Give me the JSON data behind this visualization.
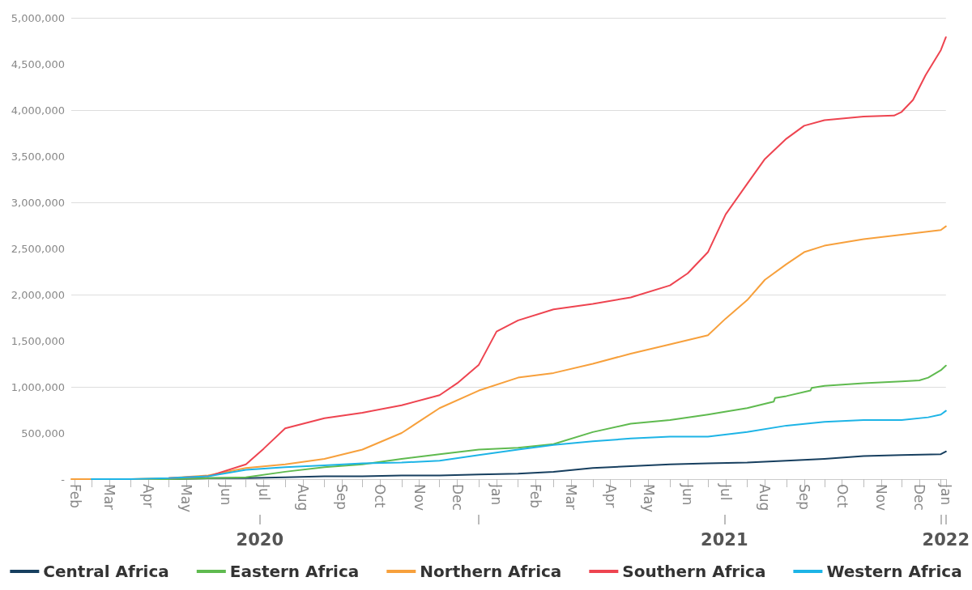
{
  "chart_data": {
    "type": "line",
    "grid": "y",
    "legend": "bottom",
    "marker": "none",
    "line_style": "solid",
    "xlim": [
      "2020-02-14",
      "2022-01-05"
    ],
    "ylim": [
      0,
      5000000
    ],
    "yticks": [
      {
        "value": 0,
        "label": "-"
      },
      {
        "value": 500000,
        "label": "500,000"
      },
      {
        "value": 1000000,
        "label": "1,000,000"
      },
      {
        "value": 1500000,
        "label": "1,500,000"
      },
      {
        "value": 2000000,
        "label": "2,000,000"
      },
      {
        "value": 2500000,
        "label": "2,500,000"
      },
      {
        "value": 3000000,
        "label": "3,000,000"
      },
      {
        "value": 3500000,
        "label": "3,500,000"
      },
      {
        "value": 4000000,
        "label": "4,000,000"
      },
      {
        "value": 4500000,
        "label": "4,500,000"
      },
      {
        "value": 5000000,
        "label": "5,000,000"
      }
    ],
    "xticks": [
      {
        "value": "2020-02-17",
        "label": "Feb"
      },
      {
        "value": "2020-03-01",
        "label": null
      },
      {
        "value": "2020-03-15",
        "label": "Mar"
      },
      {
        "value": "2020-04-01",
        "label": null
      },
      {
        "value": "2020-04-15",
        "label": "Apr"
      },
      {
        "value": "2020-05-01",
        "label": null
      },
      {
        "value": "2020-05-15",
        "label": "May"
      },
      {
        "value": "2020-06-01",
        "label": null
      },
      {
        "value": "2020-06-15",
        "label": "Jun"
      },
      {
        "value": "2020-07-01",
        "label": null
      },
      {
        "value": "2020-07-15",
        "label": "Jul"
      },
      {
        "value": "2020-08-01",
        "label": null
      },
      {
        "value": "2020-08-15",
        "label": "Aug"
      },
      {
        "value": "2020-09-01",
        "label": null
      },
      {
        "value": "2020-09-15",
        "label": "Sep"
      },
      {
        "value": "2020-10-01",
        "label": null
      },
      {
        "value": "2020-10-15",
        "label": "Oct"
      },
      {
        "value": "2020-11-01",
        "label": null
      },
      {
        "value": "2020-11-15",
        "label": "Nov"
      },
      {
        "value": "2020-12-01",
        "label": null
      },
      {
        "value": "2020-12-15",
        "label": "Dec"
      },
      {
        "value": "2021-01-01",
        "label": null
      },
      {
        "value": "2021-01-15",
        "label": "Jan"
      },
      {
        "value": "2021-02-01",
        "label": null
      },
      {
        "value": "2021-02-15",
        "label": "Feb"
      },
      {
        "value": "2021-03-01",
        "label": null
      },
      {
        "value": "2021-03-15",
        "label": "Mar"
      },
      {
        "value": "2021-04-01",
        "label": null
      },
      {
        "value": "2021-04-15",
        "label": "Apr"
      },
      {
        "value": "2021-05-01",
        "label": null
      },
      {
        "value": "2021-05-15",
        "label": "May"
      },
      {
        "value": "2021-06-01",
        "label": null
      },
      {
        "value": "2021-06-15",
        "label": "Jun"
      },
      {
        "value": "2021-07-01",
        "label": null
      },
      {
        "value": "2021-07-15",
        "label": "Jul"
      },
      {
        "value": "2021-08-01",
        "label": null
      },
      {
        "value": "2021-08-15",
        "label": "Aug"
      },
      {
        "value": "2021-09-01",
        "label": null
      },
      {
        "value": "2021-09-15",
        "label": "Sep"
      },
      {
        "value": "2021-10-01",
        "label": null
      },
      {
        "value": "2021-10-15",
        "label": "Oct"
      },
      {
        "value": "2021-11-01",
        "label": null
      },
      {
        "value": "2021-11-15",
        "label": "Nov"
      },
      {
        "value": "2021-12-01",
        "label": null
      },
      {
        "value": "2021-12-15",
        "label": "Dec"
      },
      {
        "value": "2022-01-01",
        "label": null
      },
      {
        "value": "2022-01-05",
        "label": "Jan"
      }
    ],
    "x2lim": [
      "2020-02-14",
      "2022-01-05"
    ],
    "x2ticks": [
      {
        "value": "2020-07-12",
        "label": "2020"
      },
      {
        "value": "2021-01-01",
        "label": null
      },
      {
        "value": "2021-07-14",
        "label": "2021"
      },
      {
        "value": "2022-01-01",
        "label": null
      },
      {
        "value": "2022-01-05",
        "label": "2022"
      }
    ],
    "series": [
      {
        "name": "Central Africa",
        "color": "#173f5f",
        "x": [
          "2020-03-01",
          "2020-04-01",
          "2020-05-01",
          "2020-06-01",
          "2020-07-01",
          "2020-08-01",
          "2020-09-01",
          "2020-10-01",
          "2020-11-01",
          "2020-12-01",
          "2021-01-01",
          "2021-02-01",
          "2021-03-01",
          "2021-04-01",
          "2021-05-01",
          "2021-06-01",
          "2021-07-01",
          "2021-08-01",
          "2021-09-01",
          "2021-10-01",
          "2021-11-01",
          "2021-12-01",
          "2022-01-01",
          "2022-01-05"
        ],
        "values": [
          0,
          0,
          0,
          10000,
          10000,
          20000,
          30000,
          30000,
          40000,
          40000,
          50000,
          60000,
          80000,
          120000,
          140000,
          160000,
          170000,
          180000,
          200000,
          220000,
          250000,
          260000,
          270000,
          300000
        ]
      },
      {
        "name": "Eastern Africa",
        "color": "#5fba4f",
        "x": [
          "2020-03-13",
          "2020-04-01",
          "2020-05-01",
          "2020-06-01",
          "2020-07-01",
          "2020-08-01",
          "2020-09-01",
          "2020-10-01",
          "2020-11-01",
          "2020-12-01",
          "2021-01-01",
          "2021-02-01",
          "2021-03-01",
          "2021-04-01",
          "2021-05-01",
          "2021-06-01",
          "2021-07-01",
          "2021-08-01",
          "2021-08-22",
          "2021-08-23",
          "2021-09-01",
          "2021-09-20",
          "2021-09-21",
          "2021-10-01",
          "2021-11-01",
          "2021-12-01",
          "2021-12-15",
          "2021-12-22",
          "2022-01-01",
          "2022-01-05"
        ],
        "values": [
          0,
          0,
          0,
          10000,
          20000,
          80000,
          130000,
          160000,
          220000,
          270000,
          320000,
          340000,
          380000,
          510000,
          600000,
          640000,
          700000,
          770000,
          840000,
          880000,
          900000,
          960000,
          990000,
          1010000,
          1040000,
          1060000,
          1070000,
          1100000,
          1180000,
          1230000
        ]
      },
      {
        "name": "Northern Africa",
        "color": "#f7a03c",
        "x": [
          "2020-02-14",
          "2020-03-01",
          "2020-04-01",
          "2020-05-01",
          "2020-06-01",
          "2020-07-01",
          "2020-08-01",
          "2020-09-01",
          "2020-10-01",
          "2020-11-01",
          "2020-12-01",
          "2021-01-01",
          "2021-02-01",
          "2021-03-01",
          "2021-04-01",
          "2021-05-01",
          "2021-06-01",
          "2021-07-01",
          "2021-07-15",
          "2021-08-01",
          "2021-08-15",
          "2021-09-01",
          "2021-09-15",
          "2021-10-01",
          "2021-11-01",
          "2021-12-01",
          "2022-01-01",
          "2022-01-05"
        ],
        "values": [
          0,
          0,
          0,
          10000,
          40000,
          120000,
          160000,
          220000,
          320000,
          500000,
          770000,
          960000,
          1100000,
          1150000,
          1250000,
          1360000,
          1460000,
          1560000,
          1740000,
          1940000,
          2160000,
          2330000,
          2460000,
          2530000,
          2600000,
          2650000,
          2700000,
          2740000
        ]
      },
      {
        "name": "Southern Africa",
        "color": "#ee4450",
        "x": [
          "2020-05-01",
          "2020-06-01",
          "2020-07-01",
          "2020-07-15",
          "2020-08-01",
          "2020-09-01",
          "2020-10-01",
          "2020-11-01",
          "2020-12-01",
          "2020-12-15",
          "2021-01-01",
          "2021-01-15",
          "2021-02-01",
          "2021-03-01",
          "2021-04-01",
          "2021-05-01",
          "2021-06-01",
          "2021-06-15",
          "2021-07-01",
          "2021-07-15",
          "2021-08-01",
          "2021-08-15",
          "2021-09-01",
          "2021-09-15",
          "2021-10-01",
          "2021-11-01",
          "2021-11-25",
          "2021-12-01",
          "2021-12-10",
          "2021-12-20",
          "2022-01-01",
          "2022-01-05"
        ],
        "values": [
          10000,
          30000,
          160000,
          330000,
          550000,
          660000,
          720000,
          800000,
          910000,
          1040000,
          1240000,
          1600000,
          1720000,
          1840000,
          1900000,
          1970000,
          2100000,
          2230000,
          2460000,
          2870000,
          3200000,
          3470000,
          3690000,
          3830000,
          3890000,
          3930000,
          3940000,
          3980000,
          4110000,
          4380000,
          4650000,
          4790000
        ]
      },
      {
        "name": "Western Africa",
        "color": "#1db4e6",
        "x": [
          "2020-03-01",
          "2020-04-01",
          "2020-05-01",
          "2020-06-01",
          "2020-07-01",
          "2020-08-01",
          "2020-09-01",
          "2020-10-01",
          "2020-11-01",
          "2020-12-01",
          "2021-01-01",
          "2021-02-01",
          "2021-03-01",
          "2021-04-01",
          "2021-05-01",
          "2021-06-01",
          "2021-07-01",
          "2021-08-01",
          "2021-09-01",
          "2021-10-01",
          "2021-11-01",
          "2021-12-01",
          "2021-12-22",
          "2022-01-01",
          "2022-01-05"
        ],
        "values": [
          0,
          0,
          10000,
          30000,
          100000,
          130000,
          150000,
          170000,
          180000,
          200000,
          260000,
          320000,
          370000,
          410000,
          440000,
          460000,
          460000,
          510000,
          580000,
          620000,
          640000,
          640000,
          670000,
          700000,
          740000
        ]
      }
    ]
  }
}
